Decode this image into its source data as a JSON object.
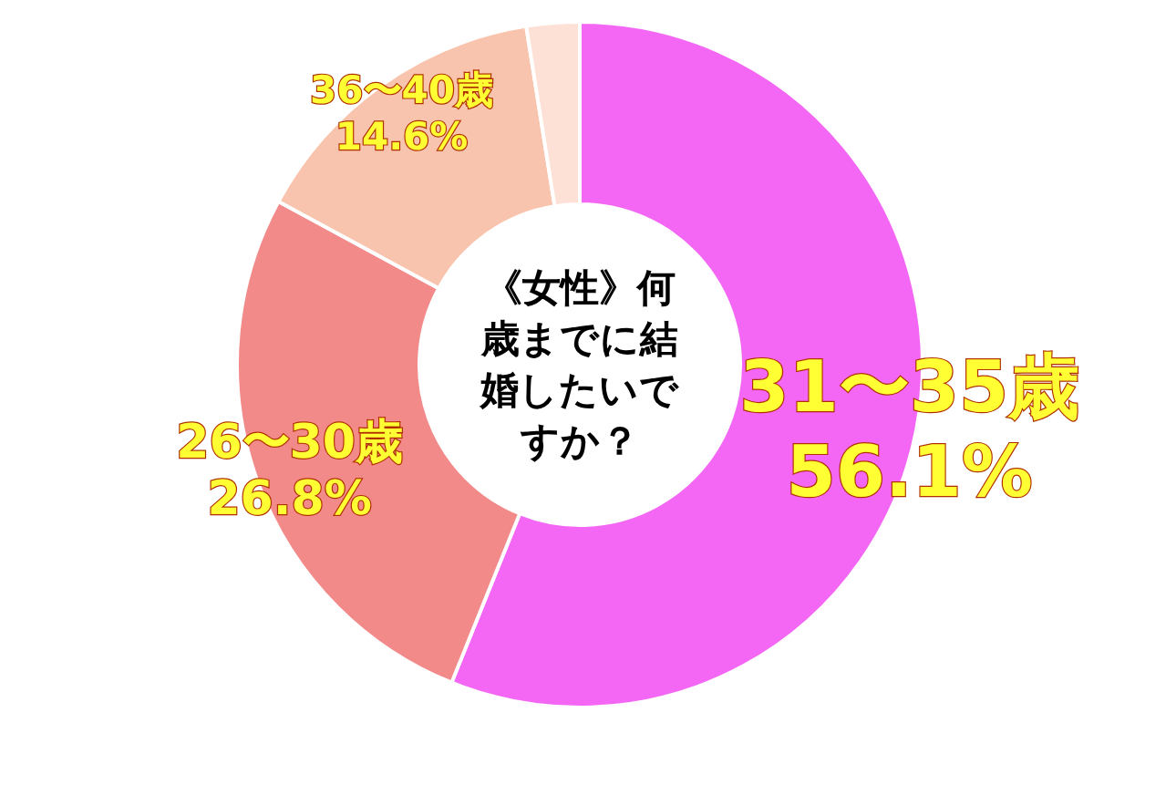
{
  "chart_data": {
    "type": "donut",
    "title": "《女性》何歳までに結婚したいですか？",
    "categories": [
      "31〜35歳",
      "26〜30歳",
      "36〜40歳",
      null
    ],
    "values": [
      56.1,
      26.8,
      14.6,
      2.5
    ],
    "value_labels": [
      "56.1%",
      "26.8%",
      "14.6%",
      null
    ],
    "colors": [
      "#f466f4",
      "#f28a8a",
      "#f9c4ad",
      "#fde0d6"
    ]
  }
}
